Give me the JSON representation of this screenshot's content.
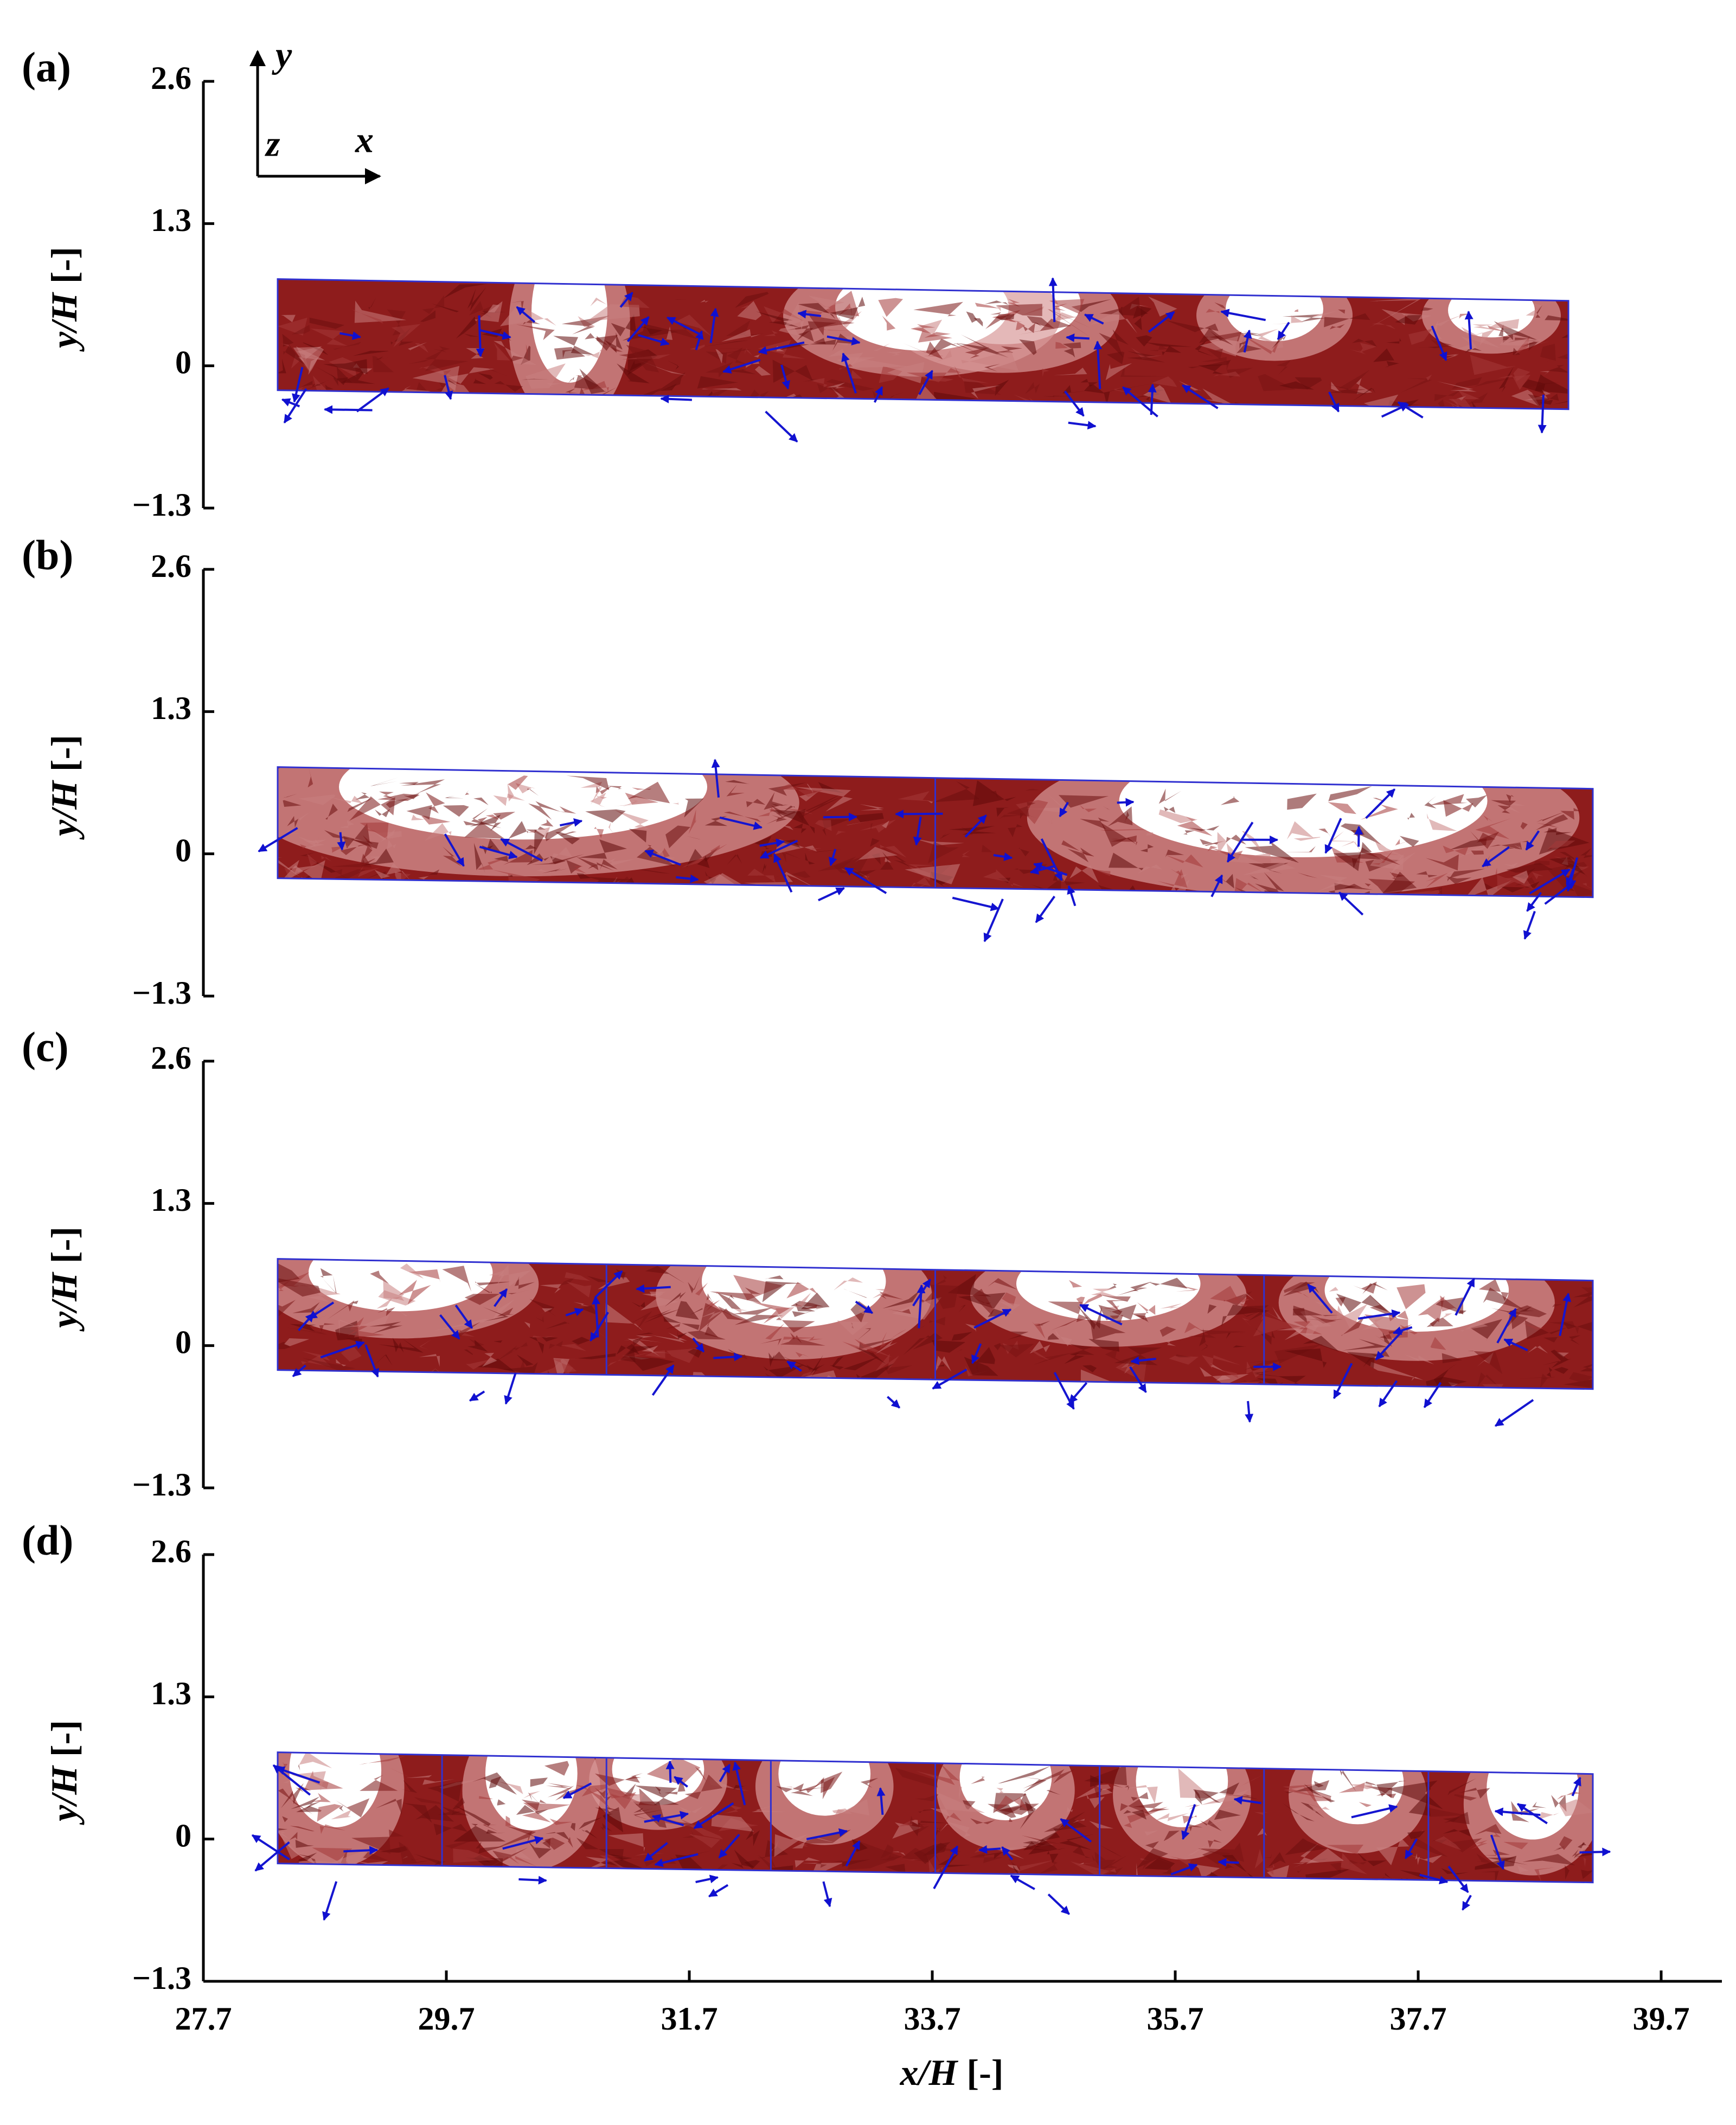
{
  "chart_data": [
    {
      "type": "flow-field",
      "label": "(a)",
      "ylabel": "y/H [-]",
      "ylim": [
        -1.3,
        2.6
      ],
      "yticks": [
        {
          "value": -1.3,
          "label": "−1.3"
        },
        0,
        1.3,
        2.6
      ],
      "axis_triad": {
        "up": "y",
        "out": "z",
        "right": "x"
      }
    },
    {
      "type": "flow-field",
      "label": "(b)",
      "ylabel": "y/H [-]",
      "ylim": [
        -1.3,
        2.6
      ],
      "yticks": [
        {
          "value": -1.3,
          "label": "−1.3"
        },
        0,
        1.3,
        2.6
      ]
    },
    {
      "type": "flow-field",
      "label": "(c)",
      "ylabel": "y/H [-]",
      "ylim": [
        -1.3,
        2.6
      ],
      "yticks": [
        {
          "value": -1.3,
          "label": "−1.3"
        },
        0,
        1.3,
        2.6
      ]
    },
    {
      "type": "flow-field",
      "label": "(d)",
      "ylabel": "y/H [-]",
      "ylim": [
        -1.3,
        2.6
      ],
      "yticks": [
        {
          "value": -1.3,
          "label": "−1.3"
        },
        0,
        1.3,
        2.6
      ],
      "xlabel": "x/H [-]",
      "xlim": [
        27.7,
        40.2
      ],
      "xticks": [
        27.7,
        29.7,
        31.7,
        33.7,
        35.7,
        37.7,
        39.7
      ]
    }
  ]
}
